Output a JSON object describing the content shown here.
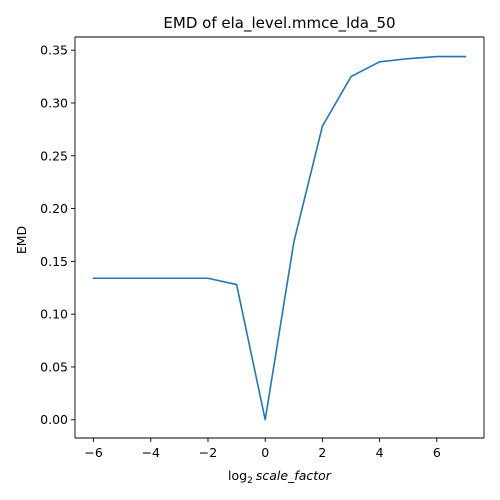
{
  "chart_data": {
    "type": "line",
    "title": "EMD of ela_level.mmce_lda_50",
    "xlabel_prefix": "log",
    "xlabel_sub": "2",
    "xlabel_italic": "scale_factor",
    "ylabel": "EMD",
    "xlim": [
      -6.65,
      7.65
    ],
    "ylim": [
      -0.0173,
      0.3625
    ],
    "xticks": [
      -6,
      -4,
      -2,
      0,
      2,
      4,
      6
    ],
    "xtick_labels": [
      "−6",
      "−4",
      "−2",
      "0",
      "2",
      "4",
      "6"
    ],
    "yticks": [
      0.0,
      0.05,
      0.1,
      0.15,
      0.2,
      0.25,
      0.3,
      0.35
    ],
    "ytick_labels": [
      "0.00",
      "0.05",
      "0.10",
      "0.15",
      "0.20",
      "0.25",
      "0.30",
      "0.35"
    ],
    "grid": false,
    "series": [
      {
        "color": "#1f77b4",
        "x": [
          -6,
          -5,
          -4,
          -3,
          -2,
          -1,
          0,
          1,
          2,
          3,
          4,
          5,
          6,
          7
        ],
        "y": [
          0.134,
          0.134,
          0.134,
          0.134,
          0.134,
          0.128,
          0.0,
          0.168,
          0.278,
          0.325,
          0.339,
          0.342,
          0.344,
          0.344
        ]
      }
    ]
  }
}
